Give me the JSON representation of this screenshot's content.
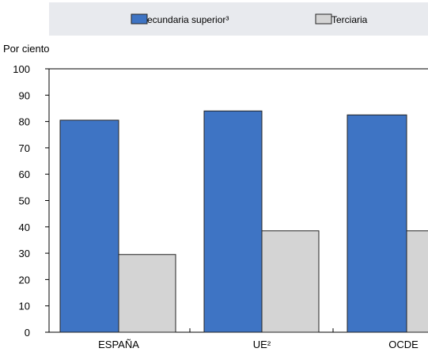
{
  "chart_data": {
    "type": "bar",
    "ylabel": "Por ciento",
    "ylim": [
      0,
      100
    ],
    "yticks": [
      0,
      10,
      20,
      30,
      40,
      50,
      60,
      70,
      80,
      90,
      100
    ],
    "grid": false,
    "legend_position": "top",
    "categories": [
      "ESPAÑA",
      "UE²",
      "OCDE"
    ],
    "series": [
      {
        "name": "ecundaria superior³",
        "color": "#3e74c4",
        "values": [
          80.5,
          84,
          82.5
        ]
      },
      {
        "name": "Terciaria",
        "color": "#d4d4d4",
        "values": [
          29.5,
          38.5,
          38.5
        ]
      }
    ]
  }
}
